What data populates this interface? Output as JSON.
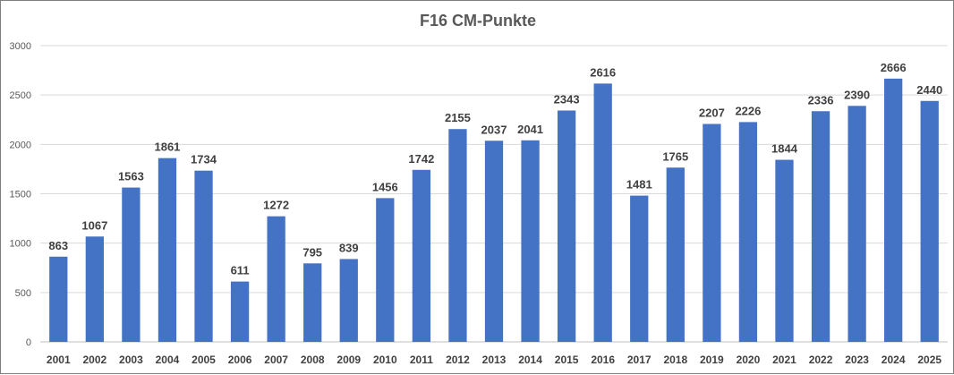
{
  "chart_data": {
    "type": "bar",
    "title": "F16 CM-Punkte",
    "xlabel": "",
    "ylabel": "",
    "categories": [
      "2001",
      "2002",
      "2003",
      "2004",
      "2005",
      "2006",
      "2007",
      "2008",
      "2009",
      "2010",
      "2011",
      "2012",
      "2013",
      "2014",
      "2015",
      "2016",
      "2017",
      "2018",
      "2019",
      "2020",
      "2021",
      "2022",
      "2023",
      "2024",
      "2025"
    ],
    "values": [
      863,
      1067,
      1563,
      1861,
      1734,
      611,
      1272,
      795,
      839,
      1456,
      1742,
      2155,
      2037,
      2041,
      2343,
      2616,
      1481,
      1765,
      2207,
      2226,
      1844,
      2336,
      2390,
      2666,
      2440
    ],
    "ylim": [
      0,
      3000
    ],
    "yticks": [
      0,
      500,
      1000,
      1500,
      2000,
      2500,
      3000
    ],
    "grid": true,
    "legend": "none",
    "bar_color": "#4472C4",
    "data_labels": true
  }
}
